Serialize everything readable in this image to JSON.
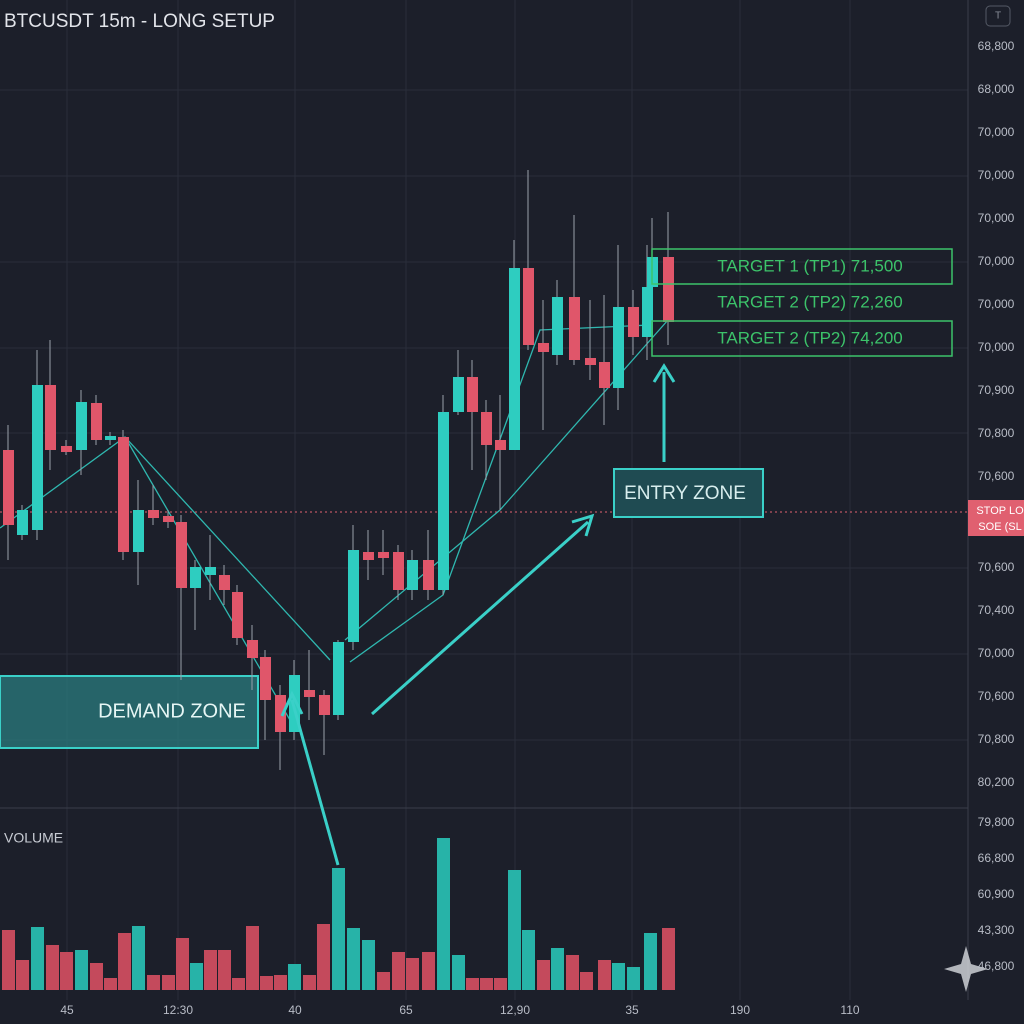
{
  "header": {
    "title": "BTCUSDT 15m - LONG SETUP",
    "badge": "T"
  },
  "price_axis": [
    "68,800",
    "68,000",
    "70,000",
    "70,000",
    "70,000",
    "70,000",
    "70,000",
    "70,000",
    "70,900",
    "70,800",
    "70,600",
    "70,600",
    "70,400",
    "70,000",
    "70,600",
    "70,800",
    "80,200"
  ],
  "stop_loss": [
    "STOP LO",
    "SOE (SL"
  ],
  "annotations": {
    "demand": "DEMAND ZONE",
    "entry": "ENTRY ZONE",
    "targets": [
      "TARGET 1 (TP1) 71,500",
      "TARGET 2 (TP2) 72,260",
      "TARGET 2 (TP2) 74,200"
    ]
  },
  "volume": {
    "label": "VOLUME",
    "axis": [
      "79,800",
      "66,800",
      "60,900",
      "43,300",
      "46,800"
    ]
  },
  "time_axis": [
    "45",
    "12:30",
    "40",
    "65",
    "12,90",
    "35",
    "190",
    "110"
  ]
}
